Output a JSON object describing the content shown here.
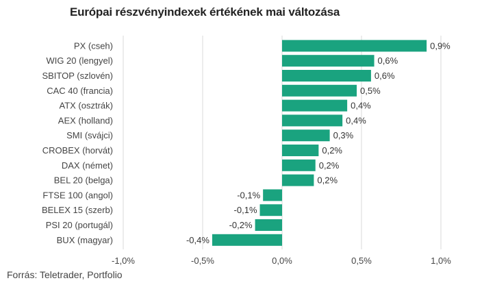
{
  "chart_data": {
    "type": "bar",
    "orientation": "horizontal",
    "title": "Európai részvényindexek értékének mai változása",
    "source": "Forrás: Teletrader, Portfolio",
    "categories": [
      "PX (cseh)",
      "WIG 20 (lengyel)",
      "SBITOP (szlovén)",
      "CAC 40 (francia)",
      "ATX (osztrák)",
      "AEX (holland)",
      "SMI (svájci)",
      "CROBEX (horvát)",
      "DAX (német)",
      "BEL 20 (belga)",
      "FTSE 100 (angol)",
      "BELEX 15 (szerb)",
      "PSI 20 (portugál)",
      "BUX (magyar)"
    ],
    "values": [
      0.91,
      0.58,
      0.56,
      0.47,
      0.41,
      0.38,
      0.3,
      0.23,
      0.21,
      0.2,
      -0.12,
      -0.14,
      -0.17,
      -0.44
    ],
    "data_labels": [
      "0,9%",
      "0,6%",
      "0,6%",
      "0,5%",
      "0,4%",
      "0,4%",
      "0,3%",
      "0,2%",
      "0,2%",
      "0,2%",
      "-0,1%",
      "-0,1%",
      "-0,2%",
      "-0,4%"
    ],
    "xlim": [
      -1.0,
      1.0
    ],
    "xticks": [
      -1.0,
      -0.5,
      0.0,
      0.5,
      1.0
    ],
    "xtick_labels": [
      "-1,0%",
      "-0,5%",
      "0,0%",
      "0,5%",
      "1,0%"
    ],
    "grid": "vertical",
    "legend": "none",
    "colors": {
      "bar": "#1aa37f",
      "grid": "#d9d9d9",
      "text": "#333333"
    }
  }
}
